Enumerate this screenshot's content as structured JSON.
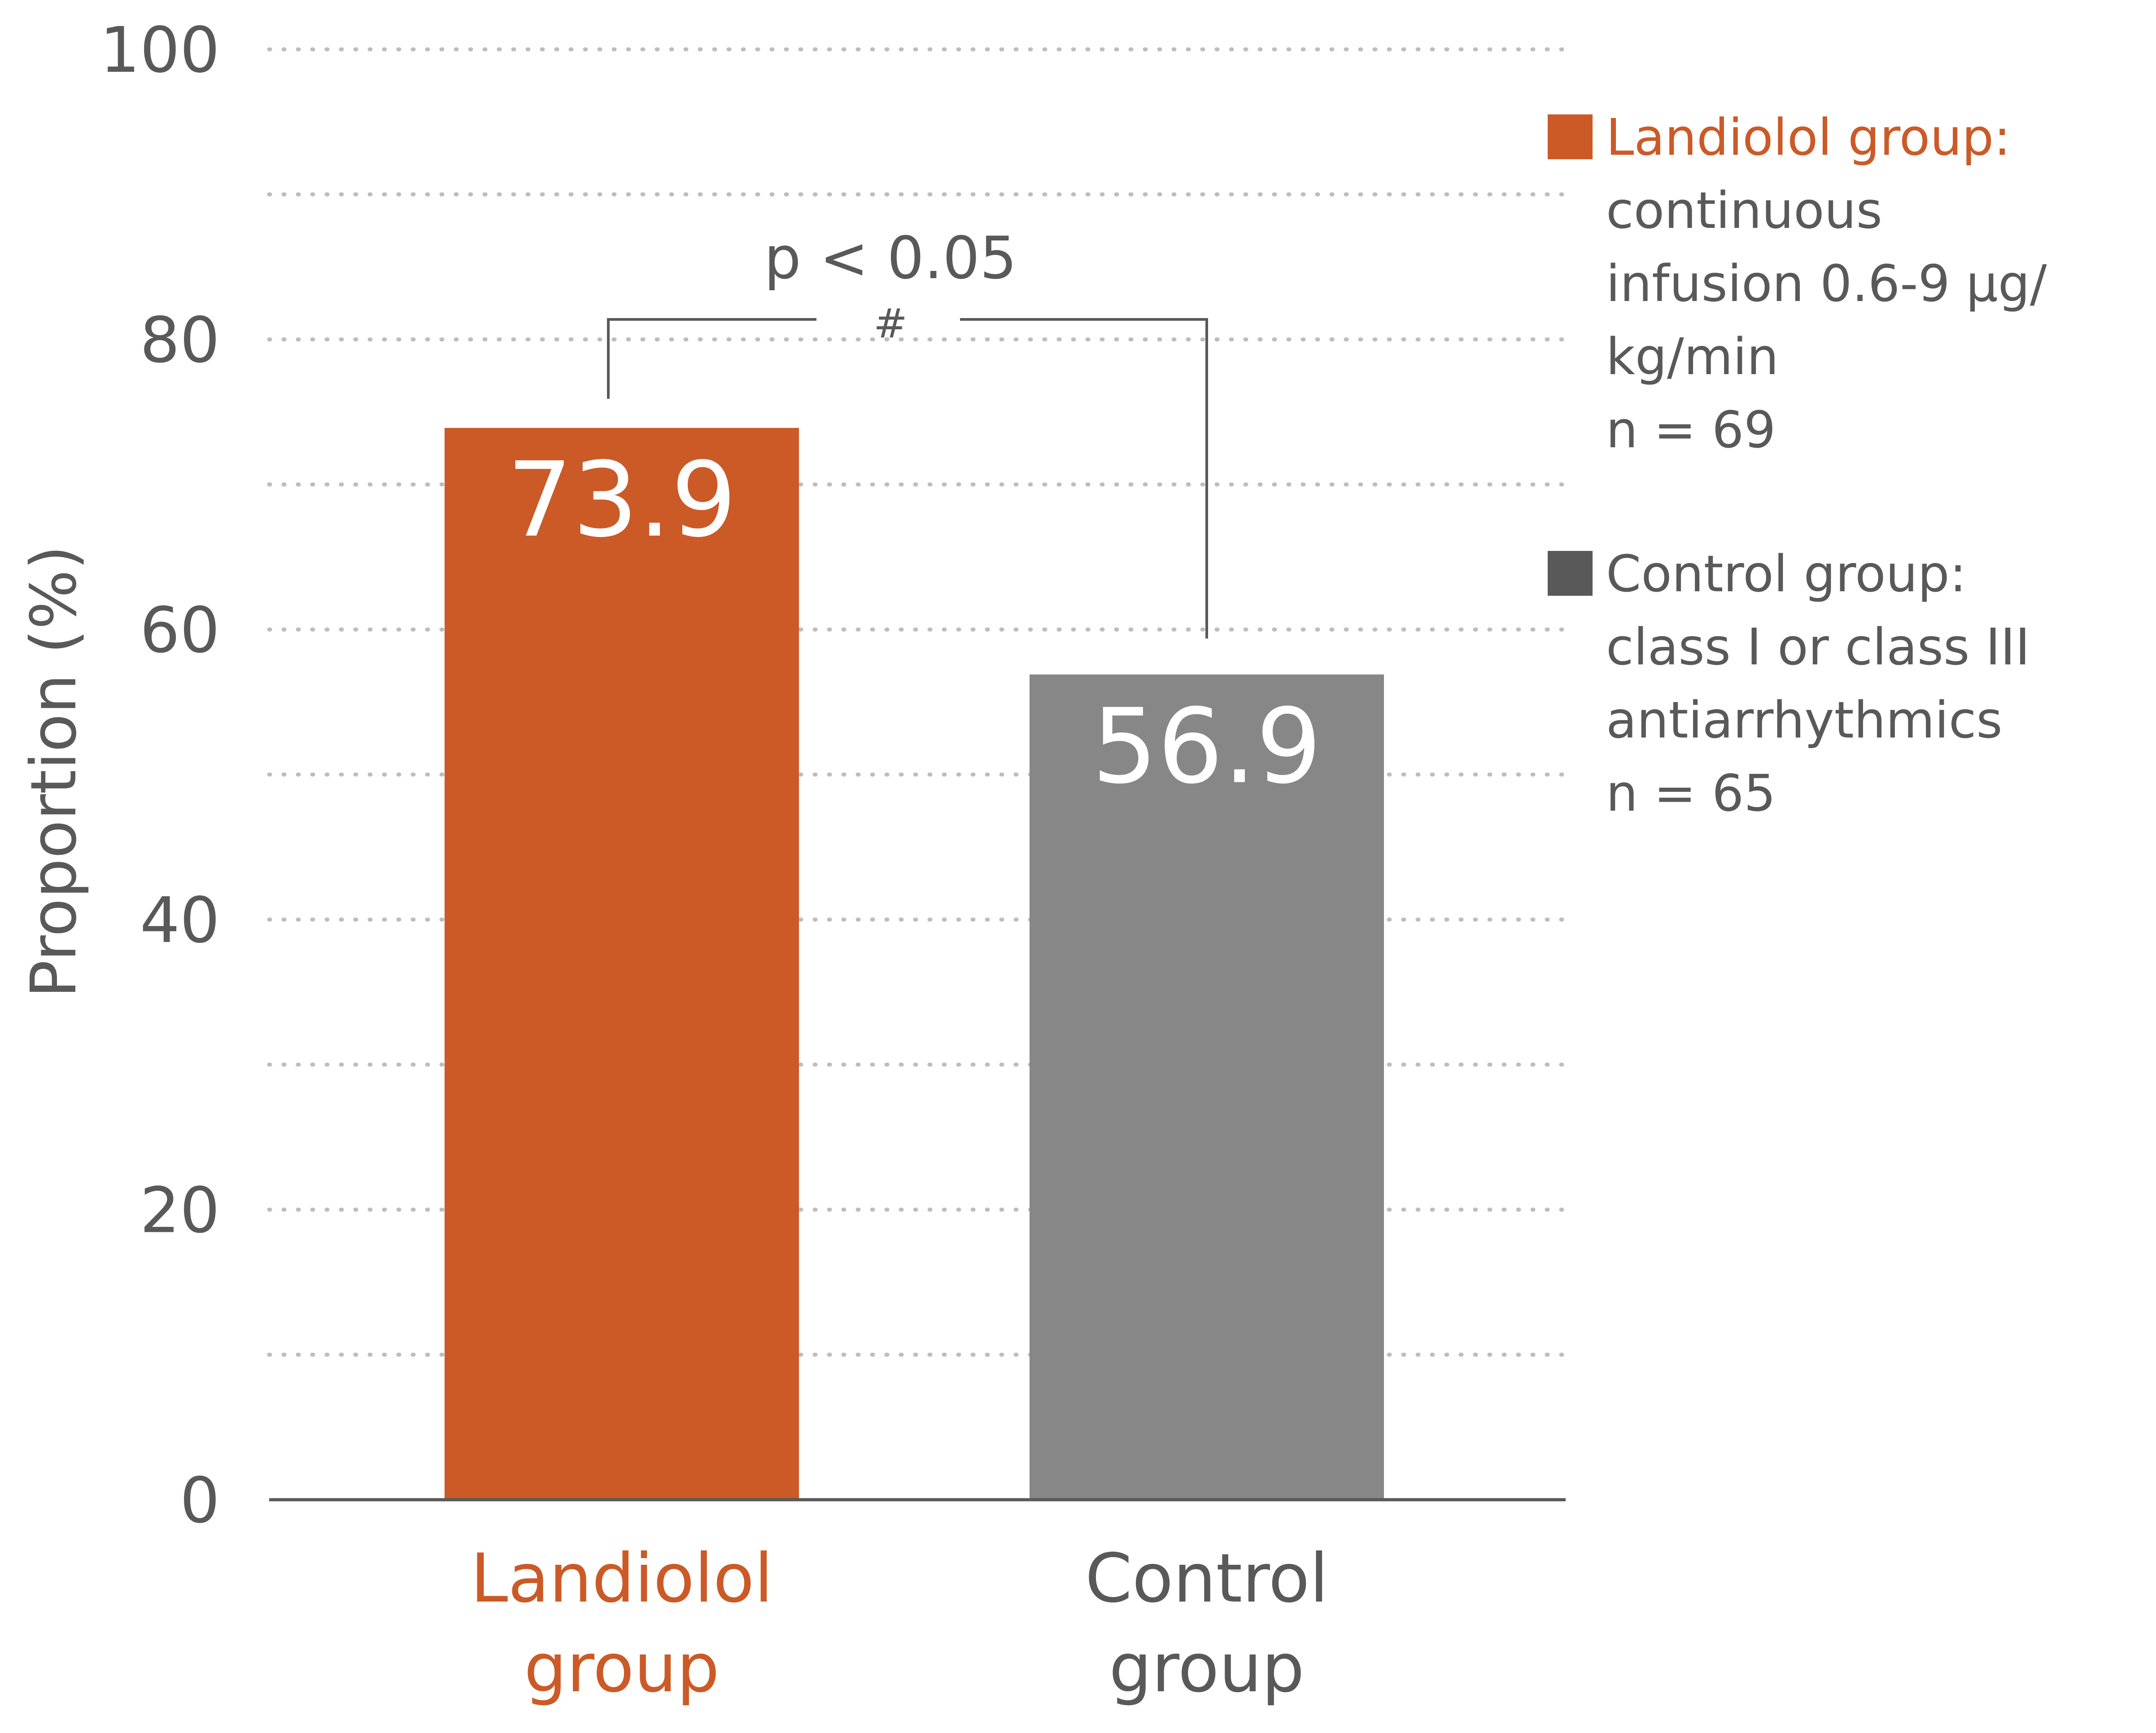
{
  "chart_data": {
    "type": "bar",
    "categories": [
      "Landiolol group",
      "Control group"
    ],
    "category_lines": [
      [
        "Landiolol",
        "group"
      ],
      [
        "Control",
        "group"
      ]
    ],
    "values": [
      73.9,
      56.9
    ],
    "value_labels": [
      "73.9",
      "56.9"
    ],
    "colors": [
      "#cb5a27",
      "#878787"
    ],
    "category_label_colors": [
      "#cb5a27",
      "#595959"
    ],
    "ylabel": "Proportion (%)",
    "ylim": [
      0,
      100
    ],
    "yticks": [
      0,
      20,
      40,
      60,
      80,
      100
    ],
    "grid": true,
    "grid_style": "dotted",
    "significance": {
      "label": "p < 0.05",
      "mark": "#"
    },
    "legend": {
      "position": "right",
      "items": [
        {
          "title": "Landiolol group:",
          "color": "#cb5a27",
          "lines": [
            "continuous",
            "infusion 0.6-9 μg/",
            "kg/min",
            "n = 69"
          ]
        },
        {
          "title": "Control group:",
          "color": "#595959",
          "lines": [
            "class I or class III",
            "antiarrhythmics",
            "n = 65"
          ]
        }
      ]
    }
  }
}
